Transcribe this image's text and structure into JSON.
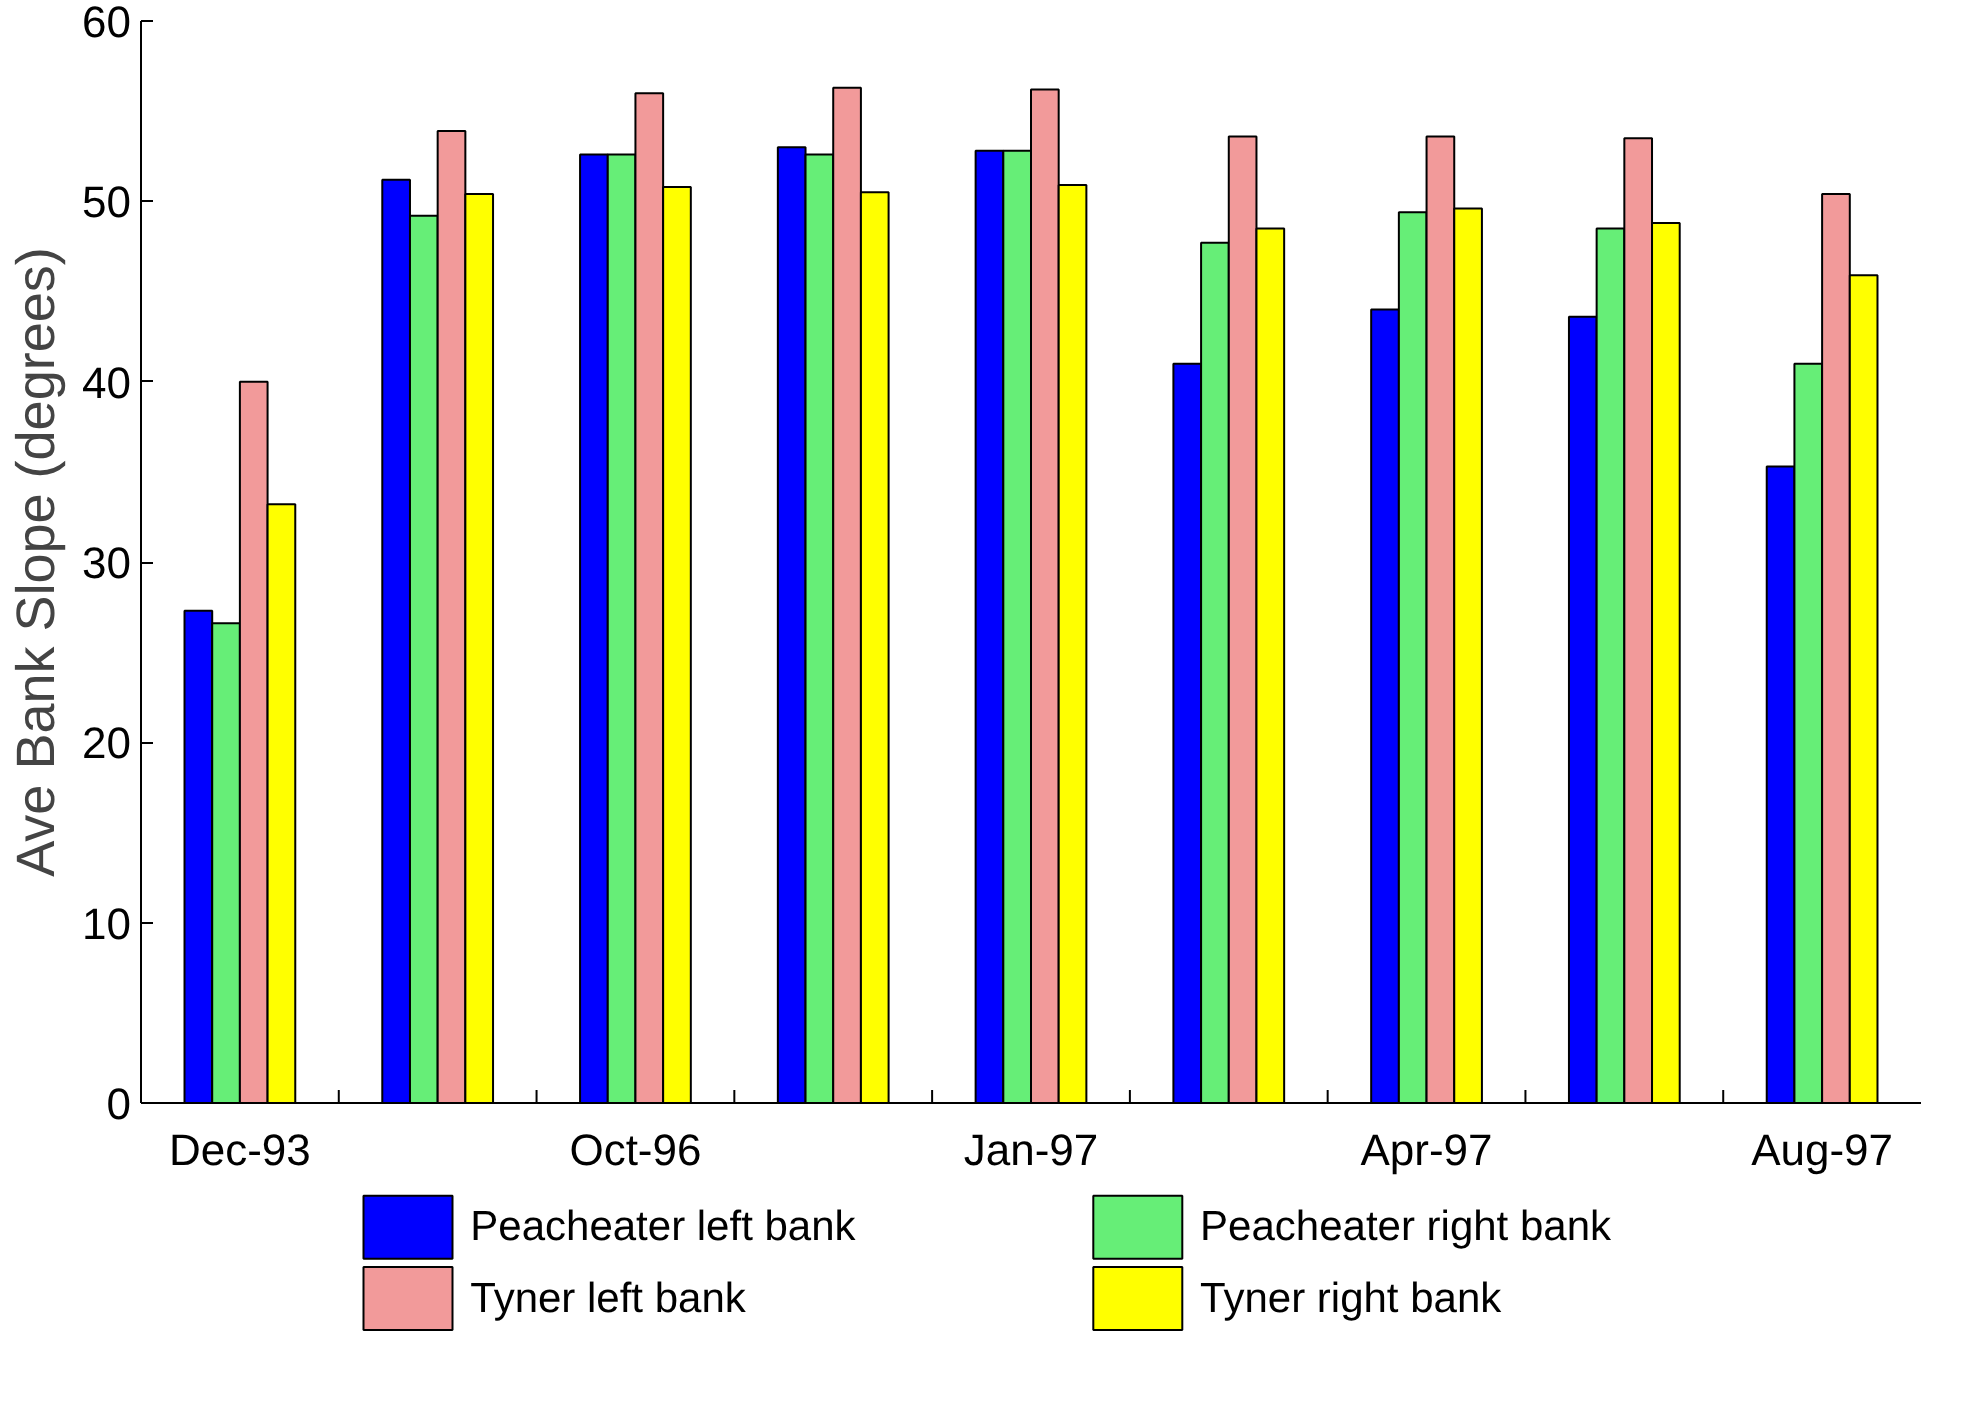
{
  "chart_data": {
    "type": "bar",
    "ylabel": "Ave Bank Slope (degrees)",
    "categories": [
      "Dec-93",
      null,
      "Oct-96",
      null,
      "Jan-97",
      null,
      "Apr-97",
      null,
      "Aug-97"
    ],
    "ylim": [
      0,
      60
    ],
    "yticks": [
      0,
      10,
      20,
      30,
      40,
      50,
      60
    ],
    "grid": false,
    "legend": "bottom",
    "series": [
      {
        "name": "Peacheater left bank",
        "color": "#0000ff",
        "values": [
          27.3,
          51.2,
          52.6,
          53.0,
          52.8,
          41.0,
          44.0,
          43.6,
          35.3
        ]
      },
      {
        "name": "Peacheater right bank",
        "color": "#66ee77",
        "values": [
          26.6,
          49.2,
          52.6,
          52.6,
          52.8,
          47.7,
          49.4,
          48.5,
          41.0
        ]
      },
      {
        "name": "Tyner left bank",
        "color": "#f29a9a",
        "values": [
          40.0,
          53.9,
          56.0,
          56.3,
          56.2,
          53.6,
          53.6,
          53.5,
          50.4
        ]
      },
      {
        "name": "Tyner right bank",
        "color": "#ffff00",
        "values": [
          33.2,
          50.4,
          50.8,
          50.5,
          50.9,
          48.5,
          49.6,
          48.8,
          45.9
        ]
      }
    ]
  }
}
